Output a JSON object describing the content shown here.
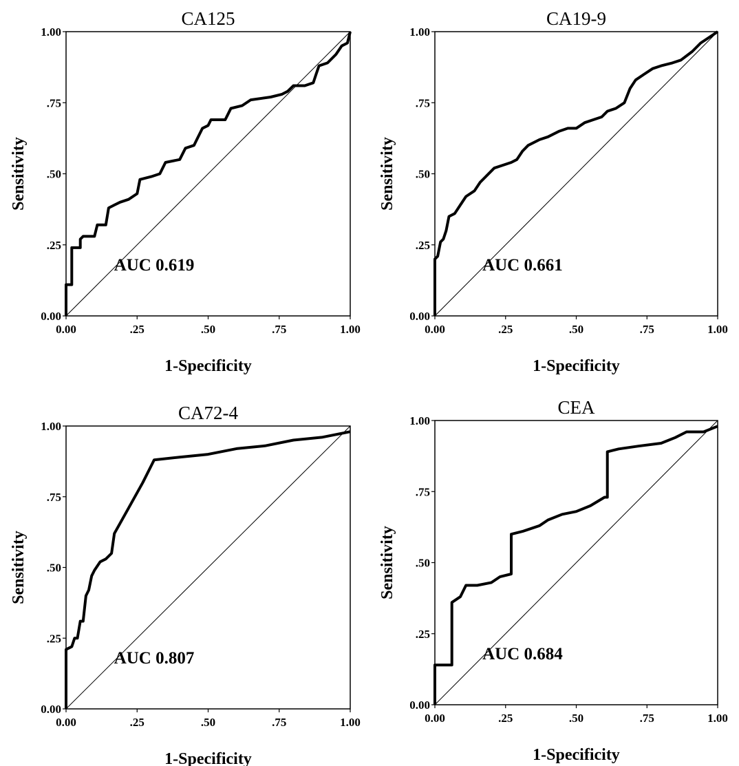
{
  "chart_data": [
    {
      "type": "line",
      "title": "CA125",
      "xlabel": "1-Specificity",
      "ylabel": "Sensitivity",
      "xlim": [
        0,
        1
      ],
      "ylim": [
        0,
        1
      ],
      "xticks": [
        "0.00",
        ".25",
        ".50",
        ".75",
        "1.00"
      ],
      "yticks": [
        "0.00",
        ".25",
        ".50",
        ".75",
        "1.00"
      ],
      "annotation": "AUC 0.619",
      "reference_line": "diagonal",
      "roc": [
        [
          0,
          0
        ],
        [
          0,
          0.11
        ],
        [
          0.02,
          0.11
        ],
        [
          0.02,
          0.24
        ],
        [
          0.05,
          0.24
        ],
        [
          0.05,
          0.27
        ],
        [
          0.06,
          0.28
        ],
        [
          0.1,
          0.28
        ],
        [
          0.11,
          0.32
        ],
        [
          0.14,
          0.32
        ],
        [
          0.15,
          0.38
        ],
        [
          0.17,
          0.39
        ],
        [
          0.19,
          0.4
        ],
        [
          0.22,
          0.41
        ],
        [
          0.25,
          0.43
        ],
        [
          0.26,
          0.48
        ],
        [
          0.3,
          0.49
        ],
        [
          0.33,
          0.5
        ],
        [
          0.34,
          0.52
        ],
        [
          0.35,
          0.54
        ],
        [
          0.4,
          0.55
        ],
        [
          0.42,
          0.59
        ],
        [
          0.45,
          0.6
        ],
        [
          0.46,
          0.62
        ],
        [
          0.48,
          0.66
        ],
        [
          0.5,
          0.67
        ],
        [
          0.51,
          0.69
        ],
        [
          0.56,
          0.69
        ],
        [
          0.57,
          0.71
        ],
        [
          0.58,
          0.73
        ],
        [
          0.62,
          0.74
        ],
        [
          0.65,
          0.76
        ],
        [
          0.72,
          0.77
        ],
        [
          0.76,
          0.78
        ],
        [
          0.78,
          0.79
        ],
        [
          0.8,
          0.81
        ],
        [
          0.84,
          0.81
        ],
        [
          0.87,
          0.82
        ],
        [
          0.88,
          0.85
        ],
        [
          0.89,
          0.88
        ],
        [
          0.92,
          0.89
        ],
        [
          0.95,
          0.92
        ],
        [
          0.97,
          0.95
        ],
        [
          0.99,
          0.96
        ],
        [
          1.0,
          1.0
        ]
      ]
    },
    {
      "type": "line",
      "title": "CA19-9",
      "xlabel": "1-Specificity",
      "ylabel": "Sensitivity",
      "xlim": [
        0,
        1
      ],
      "ylim": [
        0,
        1
      ],
      "xticks": [
        "0.00",
        ".25",
        ".50",
        ".75",
        "1.00"
      ],
      "yticks": [
        "0.00",
        ".25",
        ".50",
        ".75",
        "1.00"
      ],
      "annotation": "AUC 0.661",
      "reference_line": "diagonal",
      "roc": [
        [
          0,
          0
        ],
        [
          0,
          0.2
        ],
        [
          0.01,
          0.21
        ],
        [
          0.02,
          0.26
        ],
        [
          0.03,
          0.27
        ],
        [
          0.04,
          0.3
        ],
        [
          0.05,
          0.35
        ],
        [
          0.07,
          0.36
        ],
        [
          0.09,
          0.39
        ],
        [
          0.11,
          0.42
        ],
        [
          0.14,
          0.44
        ],
        [
          0.16,
          0.47
        ],
        [
          0.18,
          0.49
        ],
        [
          0.21,
          0.52
        ],
        [
          0.24,
          0.53
        ],
        [
          0.27,
          0.54
        ],
        [
          0.29,
          0.55
        ],
        [
          0.31,
          0.58
        ],
        [
          0.33,
          0.6
        ],
        [
          0.37,
          0.62
        ],
        [
          0.4,
          0.63
        ],
        [
          0.44,
          0.65
        ],
        [
          0.47,
          0.66
        ],
        [
          0.5,
          0.66
        ],
        [
          0.53,
          0.68
        ],
        [
          0.56,
          0.69
        ],
        [
          0.59,
          0.7
        ],
        [
          0.61,
          0.72
        ],
        [
          0.64,
          0.73
        ],
        [
          0.67,
          0.75
        ],
        [
          0.69,
          0.8
        ],
        [
          0.71,
          0.83
        ],
        [
          0.74,
          0.85
        ],
        [
          0.77,
          0.87
        ],
        [
          0.8,
          0.88
        ],
        [
          0.84,
          0.89
        ],
        [
          0.87,
          0.9
        ],
        [
          0.91,
          0.93
        ],
        [
          0.94,
          0.96
        ],
        [
          0.97,
          0.98
        ],
        [
          1.0,
          1.0
        ]
      ]
    },
    {
      "type": "line",
      "title": "CA72-4",
      "xlabel": "1-Specificity",
      "ylabel": "Sensitivity",
      "xlim": [
        0,
        1
      ],
      "ylim": [
        0,
        1
      ],
      "xticks": [
        "0.00",
        ".25",
        ".50",
        ".75",
        "1.00"
      ],
      "yticks": [
        "0.00",
        ".25",
        ".50",
        ".75",
        "1.00"
      ],
      "annotation": "AUC 0.807",
      "reference_line": "diagonal",
      "roc": [
        [
          0,
          0
        ],
        [
          0,
          0.21
        ],
        [
          0.02,
          0.22
        ],
        [
          0.03,
          0.25
        ],
        [
          0.04,
          0.25
        ],
        [
          0.05,
          0.31
        ],
        [
          0.06,
          0.31
        ],
        [
          0.07,
          0.4
        ],
        [
          0.08,
          0.42
        ],
        [
          0.09,
          0.47
        ],
        [
          0.1,
          0.49
        ],
        [
          0.12,
          0.52
        ],
        [
          0.14,
          0.53
        ],
        [
          0.16,
          0.55
        ],
        [
          0.17,
          0.62
        ],
        [
          0.22,
          0.71
        ],
        [
          0.27,
          0.8
        ],
        [
          0.3,
          0.86
        ],
        [
          0.31,
          0.88
        ],
        [
          0.4,
          0.89
        ],
        [
          0.5,
          0.9
        ],
        [
          0.6,
          0.92
        ],
        [
          0.7,
          0.93
        ],
        [
          0.8,
          0.95
        ],
        [
          0.9,
          0.96
        ],
        [
          1.0,
          0.98
        ]
      ]
    },
    {
      "type": "line",
      "title": "CEA",
      "xlabel": "1-Specificity",
      "ylabel": "Sensitivity",
      "xlim": [
        0,
        1
      ],
      "ylim": [
        0,
        1
      ],
      "xticks": [
        "0.00",
        ".25",
        ".50",
        ".75",
        "1.00"
      ],
      "yticks": [
        "0.00",
        ".25",
        ".50",
        ".75",
        "1.00"
      ],
      "annotation": "AUC 0.684",
      "reference_line": "diagonal",
      "roc": [
        [
          0,
          0
        ],
        [
          0,
          0.14
        ],
        [
          0.06,
          0.14
        ],
        [
          0.06,
          0.36
        ],
        [
          0.09,
          0.38
        ],
        [
          0.11,
          0.42
        ],
        [
          0.15,
          0.42
        ],
        [
          0.2,
          0.43
        ],
        [
          0.23,
          0.45
        ],
        [
          0.27,
          0.46
        ],
        [
          0.27,
          0.6
        ],
        [
          0.31,
          0.61
        ],
        [
          0.37,
          0.63
        ],
        [
          0.4,
          0.65
        ],
        [
          0.45,
          0.67
        ],
        [
          0.5,
          0.68
        ],
        [
          0.55,
          0.7
        ],
        [
          0.6,
          0.73
        ],
        [
          0.61,
          0.73
        ],
        [
          0.61,
          0.89
        ],
        [
          0.65,
          0.9
        ],
        [
          0.72,
          0.91
        ],
        [
          0.8,
          0.92
        ],
        [
          0.85,
          0.94
        ],
        [
          0.89,
          0.96
        ],
        [
          0.95,
          0.96
        ],
        [
          1.0,
          0.98
        ]
      ]
    }
  ]
}
